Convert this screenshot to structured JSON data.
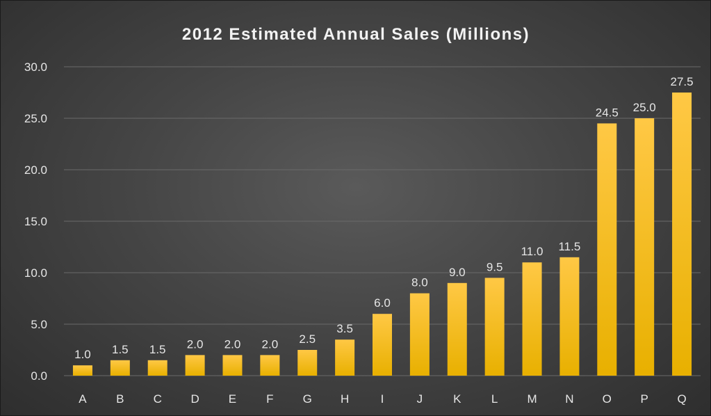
{
  "chart_data": {
    "type": "bar",
    "title": "2012 Estimated Annual Sales (Millions)",
    "categories": [
      "A",
      "B",
      "C",
      "D",
      "E",
      "F",
      "G",
      "H",
      "I",
      "J",
      "K",
      "L",
      "M",
      "N",
      "O",
      "P",
      "Q"
    ],
    "values": [
      1.0,
      1.5,
      1.5,
      2.0,
      2.0,
      2.0,
      2.5,
      3.5,
      6.0,
      8.0,
      9.0,
      9.5,
      11.0,
      11.5,
      24.5,
      25.0,
      27.5
    ],
    "value_labels": [
      "1.0",
      "1.5",
      "1.5",
      "2.0",
      "2.0",
      "2.0",
      "2.5",
      "3.5",
      "6.0",
      "8.0",
      "9.0",
      "9.5",
      "11.0",
      "11.5",
      "24.5",
      "25.0",
      "27.5"
    ],
    "ylim": [
      0,
      30
    ],
    "yticks": [
      0,
      5,
      10,
      15,
      20,
      25,
      30
    ],
    "ytick_labels": [
      "0.0",
      "5.0",
      "10.0",
      "15.0",
      "20.0",
      "25.0",
      "30.0"
    ],
    "xlabel": "",
    "ylabel": "",
    "grid": true,
    "legend": "none",
    "colors": {
      "bar_top": "#ffc845",
      "bar_bottom": "#e8b000",
      "gridline": "#6a6a6a",
      "text": "#e6e6e6"
    }
  }
}
